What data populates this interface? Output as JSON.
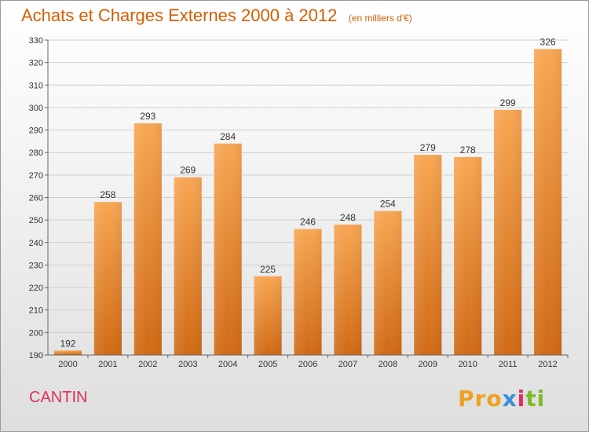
{
  "header": {
    "title": "Achats et Charges Externes 2000 à 2012",
    "unit": "(en milliers d'€)"
  },
  "footer": {
    "commune": "CANTIN",
    "logo": [
      "Pro",
      "x",
      "i",
      "ti"
    ]
  },
  "colors": {
    "title": "#d35f00",
    "bar_light": "#f6a24d",
    "bar_dark": "#d46e1a",
    "commune": "#e0305a"
  },
  "chart_data": {
    "type": "bar",
    "title": "Achats et Charges Externes 2000 à 2012",
    "subtitle": "(en milliers d'€)",
    "categories": [
      "2000",
      "2001",
      "2002",
      "2003",
      "2004",
      "2005",
      "2006",
      "2007",
      "2008",
      "2009",
      "2010",
      "2011",
      "2012"
    ],
    "values": [
      192,
      258,
      293,
      269,
      284,
      225,
      246,
      248,
      254,
      279,
      278,
      299,
      326
    ],
    "ylim": [
      190,
      330
    ],
    "yticks": [
      190,
      200,
      210,
      220,
      230,
      240,
      250,
      260,
      270,
      280,
      290,
      300,
      310,
      320,
      330
    ],
    "grid": true,
    "data_labels": true
  }
}
